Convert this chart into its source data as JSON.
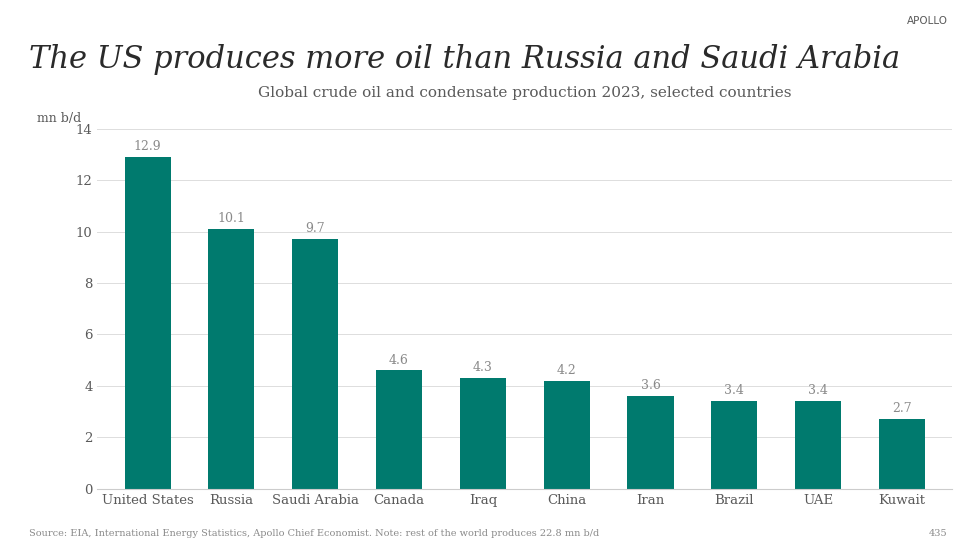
{
  "title": "The US produces more oil than Russia and Saudi Arabia",
  "subtitle": "Global crude oil and condensate production 2023, selected countries",
  "ylabel": "mn b/d",
  "source": "Source: EIA, International Energy Statistics, Apollo Chief Economist. Note: rest of the world produces 22.8 mn b/d",
  "page_num": "435",
  "apollo_label": "APOLLO",
  "categories": [
    "United States",
    "Russia",
    "Saudi Arabia",
    "Canada",
    "Iraq",
    "China",
    "Iran",
    "Brazil",
    "UAE",
    "Kuwait"
  ],
  "values": [
    12.9,
    10.1,
    9.7,
    4.6,
    4.3,
    4.2,
    3.6,
    3.4,
    3.4,
    2.7
  ],
  "bar_color": "#007A6E",
  "ylim": [
    0,
    14
  ],
  "yticks": [
    0,
    2,
    4,
    6,
    8,
    10,
    12,
    14
  ],
  "background_color": "#FFFFFF",
  "title_fontsize": 22,
  "subtitle_fontsize": 11,
  "label_fontsize": 9,
  "tick_fontsize": 9.5,
  "source_fontsize": 7,
  "text_color": "#5a5a5a",
  "bar_label_color": "#8a8a8a"
}
